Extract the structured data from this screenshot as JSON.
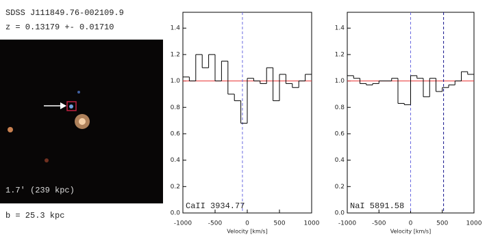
{
  "panel": {
    "object_name": "SDSS J111849.76-002109.9",
    "redshift": "z = 0.13179 +- 0.01710",
    "scale_label": "1.7' (239 kpc)",
    "impact": "b = 25.3 kpc"
  },
  "chart_data": [
    {
      "type": "step",
      "line_label": "CaII 3934.77",
      "x_label": "Velocity [km/s]",
      "x": [
        -950,
        -850,
        -750,
        -650,
        -550,
        -450,
        -350,
        -250,
        -150,
        -50,
        50,
        150,
        250,
        350,
        450,
        550,
        650,
        750,
        850,
        950
      ],
      "values": [
        1.03,
        1.0,
        1.2,
        1.1,
        1.2,
        1.0,
        1.15,
        0.9,
        0.85,
        0.68,
        1.02,
        1.0,
        0.98,
        1.1,
        0.85,
        1.05,
        0.98,
        0.95,
        1.0,
        1.05
      ],
      "color": "#000000",
      "reference": 1.0,
      "reference_color": "#e83030",
      "vlines": [
        {
          "value": -75,
          "color": "#6a6ae0"
        }
      ],
      "xlim": [
        -1000,
        1000
      ],
      "xticks": [
        -1000,
        -500,
        0,
        500,
        1000
      ],
      "ylim": [
        0,
        1.52
      ],
      "yticks": [
        {
          "value": 0,
          "label": "0.0"
        },
        0.2,
        0.4,
        0.6,
        0.8,
        {
          "value": 1,
          "label": "1.0"
        },
        1.2,
        1.4
      ]
    },
    {
      "type": "step",
      "line_label": "NaI 5891.58",
      "x_label": "Velocity [km/s]",
      "x": [
        -950,
        -850,
        -750,
        -650,
        -550,
        -450,
        -350,
        -250,
        -150,
        -50,
        50,
        150,
        250,
        350,
        450,
        550,
        650,
        750,
        850,
        950
      ],
      "values": [
        1.04,
        1.02,
        0.98,
        0.97,
        0.98,
        1.0,
        1.0,
        1.02,
        0.83,
        0.82,
        1.04,
        1.02,
        0.88,
        1.02,
        0.92,
        0.95,
        0.97,
        1.0,
        1.07,
        1.05
      ],
      "color": "#000000",
      "reference": 1.0,
      "reference_color": "#e83030",
      "vlines": [
        {
          "value": 0,
          "color": "#6a6ae0"
        },
        {
          "value": 520,
          "color": "#10108a"
        }
      ],
      "xlim": [
        -1000,
        1000
      ],
      "xticks": [
        -1000,
        -500,
        0,
        500,
        1000
      ],
      "ylim": [
        0,
        1.52
      ],
      "yticks": [
        {
          "value": 0,
          "label": "0.0"
        },
        0.2,
        0.4,
        0.6,
        0.8,
        {
          "value": 1,
          "label": "1.0"
        },
        1.2,
        1.4
      ]
    }
  ]
}
